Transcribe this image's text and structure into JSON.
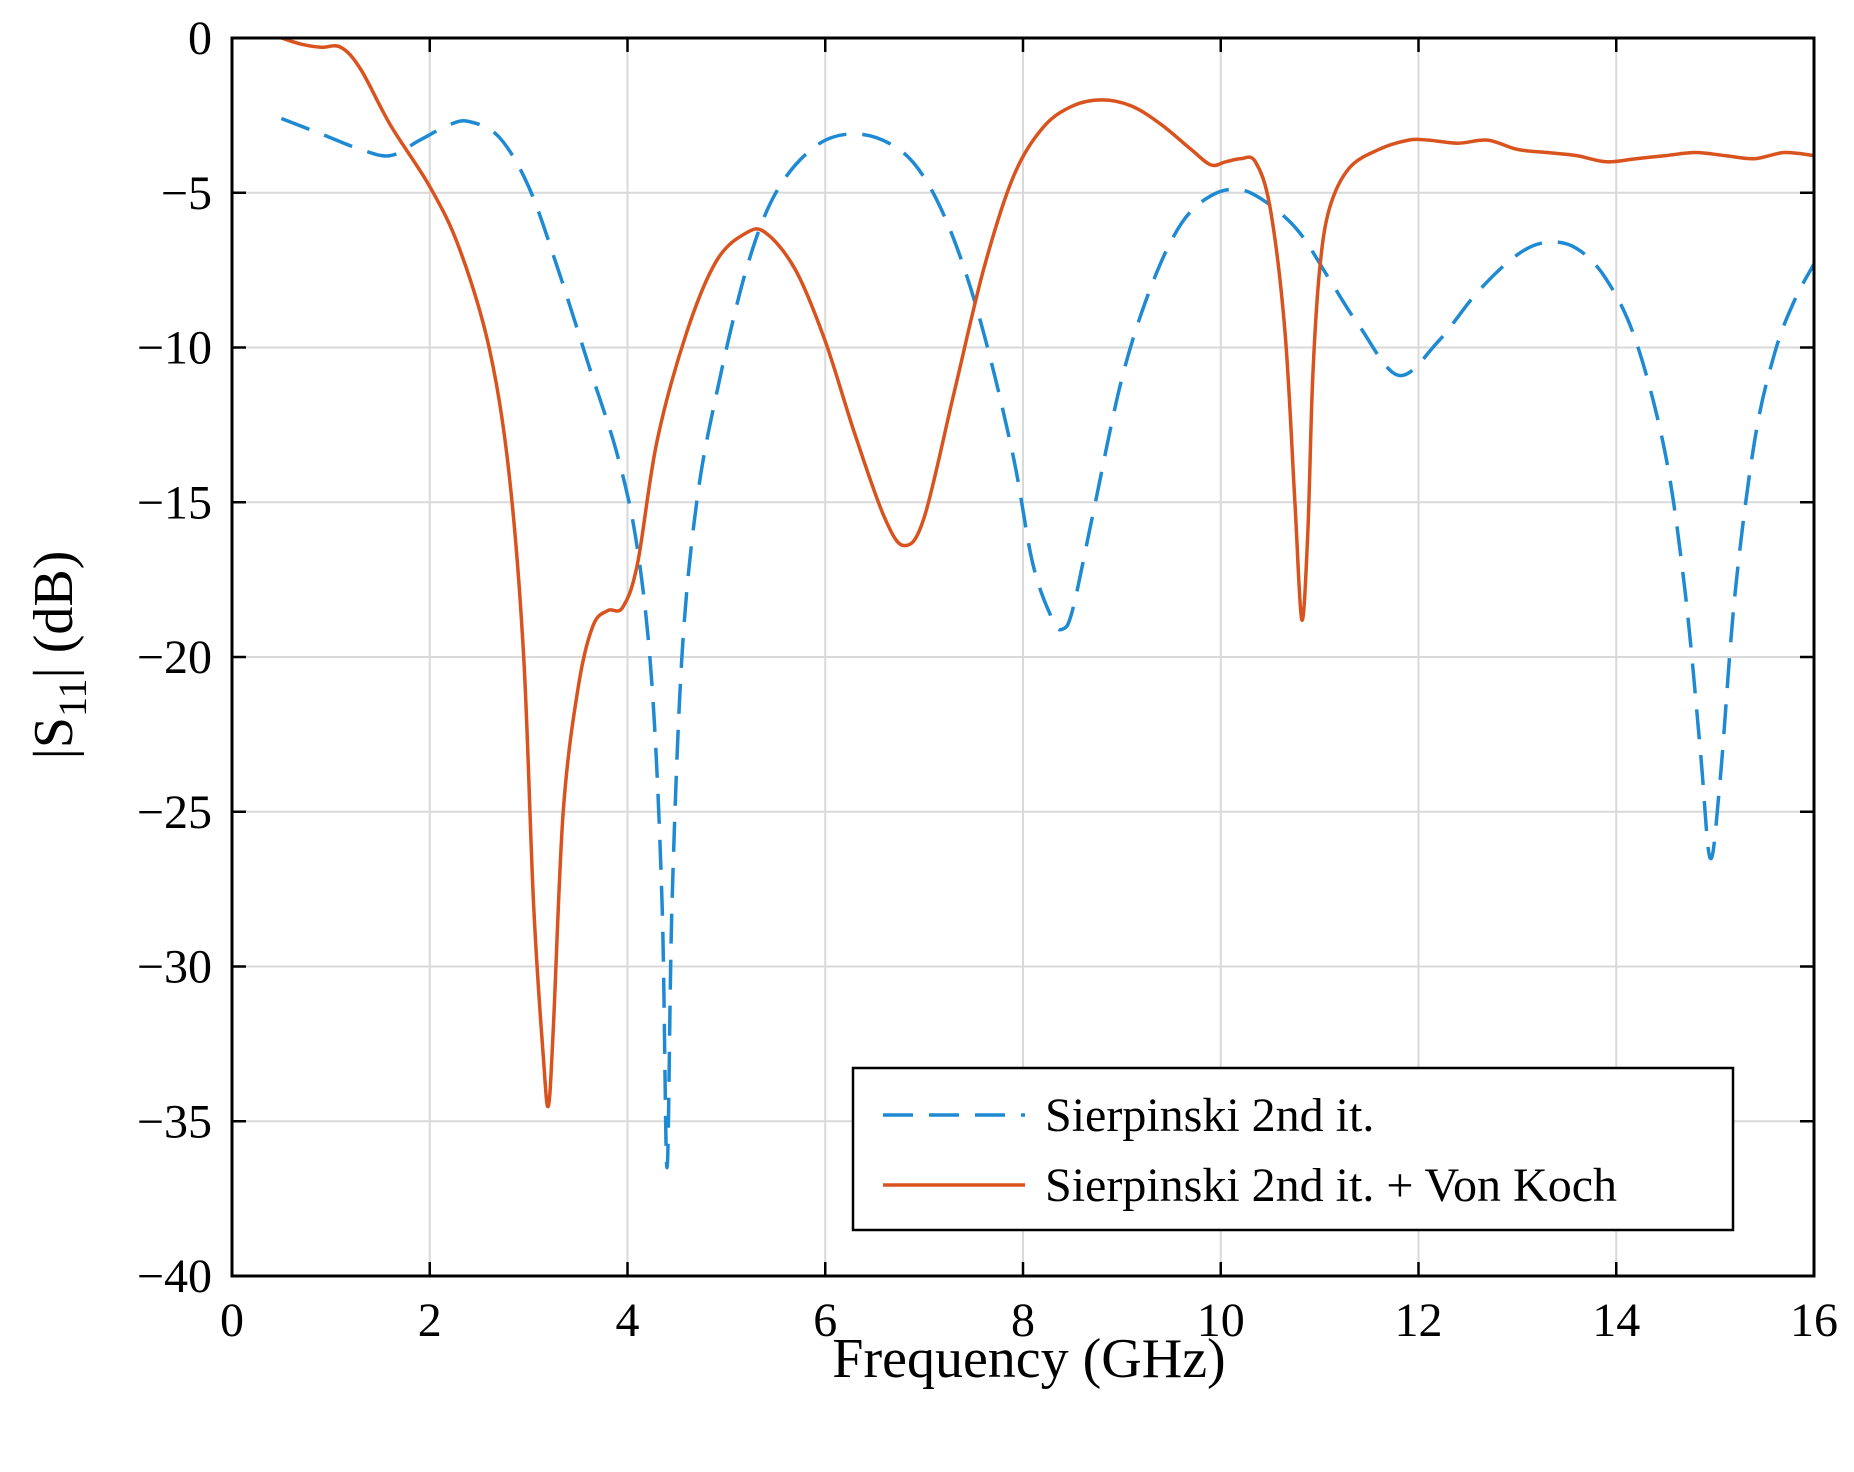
{
  "chart_data": {
    "type": "line",
    "title": "",
    "xlabel": "Frequency (GHz)",
    "ylabel_parts": {
      "prefix": "|S",
      "subscript": "11",
      "suffix": "| (dB)"
    },
    "xlim": [
      0,
      16
    ],
    "ylim": [
      -40,
      0
    ],
    "x_ticks": [
      0,
      2,
      4,
      6,
      8,
      10,
      12,
      14,
      16
    ],
    "x_tick_labels": [
      "0",
      "2",
      "4",
      "6",
      "8",
      "10",
      "12",
      "14",
      "16"
    ],
    "y_ticks": [
      0,
      -5,
      -10,
      -15,
      -20,
      -25,
      -30,
      -35,
      -40
    ],
    "y_tick_labels": [
      "0",
      "−5",
      "−10",
      "−15",
      "−20",
      "−25",
      "−30",
      "−35",
      "−40"
    ],
    "grid": true,
    "legend_position": "bottom-right",
    "series": [
      {
        "name": "Sierpinski 2nd it.",
        "color": "#1f8ad4",
        "style": "dashed",
        "x": [
          0.5,
          0.9,
          1.3,
          1.6,
          1.9,
          2.2,
          2.4,
          2.7,
          3.0,
          3.3,
          3.6,
          3.9,
          4.1,
          4.25,
          4.35,
          4.4,
          4.45,
          4.55,
          4.7,
          4.9,
          5.2,
          5.5,
          5.9,
          6.3,
          6.7,
          7.0,
          7.3,
          7.6,
          7.9,
          8.1,
          8.3,
          8.4,
          8.5,
          8.7,
          9.0,
          9.3,
          9.6,
          9.9,
          10.2,
          10.5,
          10.8,
          11.1,
          11.4,
          11.8,
          12.2,
          12.6,
          13.0,
          13.3,
          13.6,
          13.9,
          14.2,
          14.5,
          14.7,
          14.85,
          14.95,
          15.05,
          15.2,
          15.4,
          15.6,
          15.8,
          16.0
        ],
        "values": [
          -2.6,
          -3.1,
          -3.6,
          -3.8,
          -3.3,
          -2.8,
          -2.7,
          -3.2,
          -4.8,
          -7.5,
          -10.5,
          -13.5,
          -16.5,
          -21,
          -28,
          -36.5,
          -28,
          -20,
          -15,
          -11.5,
          -7.5,
          -5,
          -3.5,
          -3.1,
          -3.5,
          -4.5,
          -6.5,
          -9.5,
          -13.5,
          -17,
          -18.8,
          -19.1,
          -18.5,
          -15.5,
          -11,
          -8,
          -6,
          -5.1,
          -4.9,
          -5.4,
          -6.3,
          -7.8,
          -9.3,
          -10.9,
          -9.8,
          -8.2,
          -7,
          -6.6,
          -6.8,
          -7.8,
          -9.8,
          -13.5,
          -18,
          -23,
          -26.5,
          -24,
          -18,
          -13,
          -10.2,
          -8.5,
          -7.3
        ]
      },
      {
        "name": "Sierpinski 2nd it. + Von Koch",
        "color": "#d9531e",
        "style": "solid",
        "x": [
          0.5,
          0.7,
          0.9,
          1.1,
          1.3,
          1.6,
          2.0,
          2.3,
          2.6,
          2.8,
          2.95,
          3.05,
          3.15,
          3.2,
          3.25,
          3.35,
          3.5,
          3.65,
          3.8,
          3.95,
          4.1,
          4.3,
          4.6,
          4.9,
          5.2,
          5.4,
          5.7,
          6.0,
          6.3,
          6.6,
          6.8,
          7.0,
          7.3,
          7.6,
          7.9,
          8.2,
          8.5,
          8.8,
          9.1,
          9.4,
          9.7,
          9.9,
          10.05,
          10.2,
          10.35,
          10.5,
          10.65,
          10.75,
          10.82,
          10.88,
          10.93,
          11.0,
          11.1,
          11.3,
          11.6,
          11.9,
          12.1,
          12.4,
          12.7,
          13.0,
          13.3,
          13.6,
          13.9,
          14.2,
          14.5,
          14.8,
          15.1,
          15.4,
          15.7,
          16.0
        ],
        "values": [
          0,
          -0.2,
          -0.3,
          -0.3,
          -1.0,
          -2.8,
          -4.8,
          -6.8,
          -10.0,
          -14.0,
          -20.0,
          -28.0,
          -33.0,
          -34.5,
          -32.0,
          -25.0,
          -21.0,
          -19.0,
          -18.5,
          -18.4,
          -17.0,
          -13.0,
          -9.5,
          -7.2,
          -6.3,
          -6.3,
          -7.5,
          -9.8,
          -12.8,
          -15.5,
          -16.4,
          -15.5,
          -11.5,
          -7.5,
          -4.5,
          -2.9,
          -2.2,
          -2.0,
          -2.2,
          -2.8,
          -3.6,
          -4.1,
          -4.0,
          -3.9,
          -4.0,
          -5.5,
          -9.5,
          -15.0,
          -18.8,
          -16.0,
          -11.0,
          -7.5,
          -5.5,
          -4.2,
          -3.6,
          -3.3,
          -3.3,
          -3.4,
          -3.3,
          -3.6,
          -3.7,
          -3.8,
          -4.0,
          -3.9,
          -3.8,
          -3.7,
          -3.8,
          -3.9,
          -3.7,
          -3.8
        ]
      }
    ]
  }
}
